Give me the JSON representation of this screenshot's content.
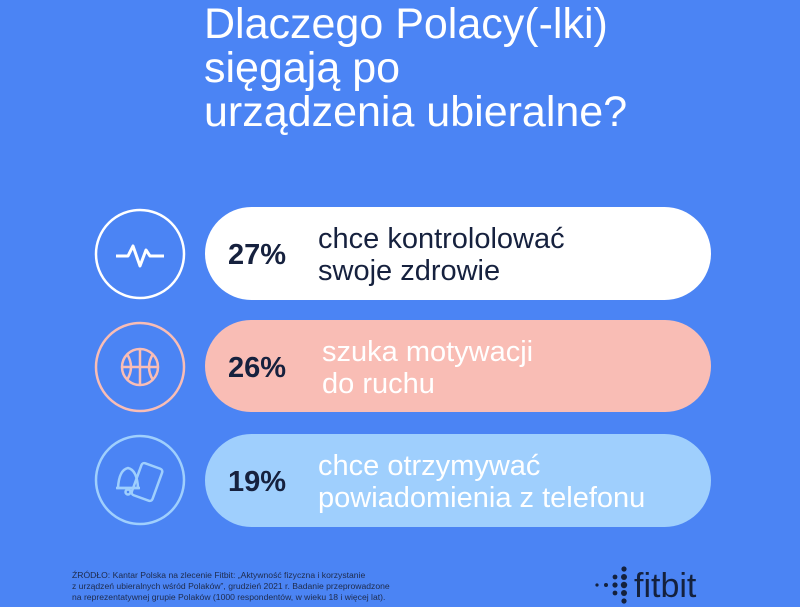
{
  "header": {
    "title_lines": [
      "Dlaczego Polacy(-lki)",
      "sięgają po",
      "urządzenia ubieralne?"
    ]
  },
  "items": [
    {
      "percent": "27%",
      "text_lines": [
        "chce kontrololować",
        "swoje zdrowie"
      ]
    },
    {
      "percent": "26%",
      "text_lines": [
        "szuka motywacji",
        "do ruchu"
      ]
    },
    {
      "percent": "19%",
      "text_lines": [
        "chce otrzymywać",
        "powiadomienia z telefonu"
      ]
    }
  ],
  "footer": {
    "source_lines": [
      "ŹRÓDŁO:  Kantar Polska na zlecenie Fitbit: „Aktywność fizyczna i korzystanie",
      "z urządzeń ubieralnych wśród Polaków”, grudzień 2021 r. Badanie przeprowadzone",
      "na reprezentatywnej grupie Polaków (1000 respondentów, w wieku 18 i więcej lat)."
    ],
    "brand": "fitbit"
  }
}
